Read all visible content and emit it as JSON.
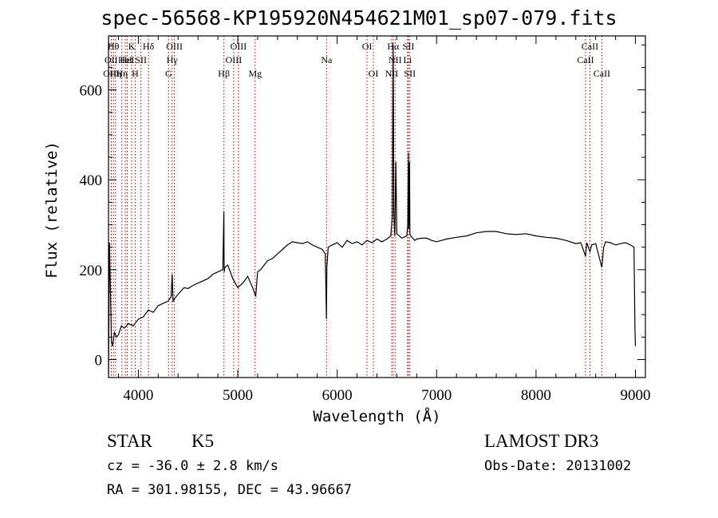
{
  "chart_data": {
    "type": "line",
    "title": "spec-56568-KP195920N454621M01_sp07-079.fits",
    "xlabel": "Wavelength (Å)",
    "ylabel": "Flux (relative)",
    "xlim": [
      3700,
      9100
    ],
    "ylim": [
      -40,
      720
    ],
    "xticks": [
      4000,
      5000,
      6000,
      7000,
      8000,
      9000
    ],
    "yticks": [
      0,
      200,
      400,
      600
    ],
    "series": [
      {
        "name": "flux",
        "x": [
          3700,
          3710,
          3720,
          3730,
          3740,
          3760,
          3780,
          3800,
          3830,
          3860,
          3900,
          3950,
          4000,
          4050,
          4100,
          4150,
          4200,
          4250,
          4300,
          4330,
          4340,
          4350,
          4380,
          4420,
          4460,
          4500,
          4550,
          4600,
          4650,
          4700,
          4750,
          4800,
          4850,
          4860,
          4862,
          4864,
          4870,
          4900,
          4950,
          5000,
          5050,
          5100,
          5150,
          5180,
          5200,
          5230,
          5300,
          5350,
          5400,
          5450,
          5500,
          5550,
          5600,
          5650,
          5700,
          5750,
          5800,
          5850,
          5880,
          5892,
          5896,
          5910,
          5950,
          6000,
          6050,
          6100,
          6150,
          6200,
          6250,
          6300,
          6350,
          6400,
          6450,
          6500,
          6540,
          6555,
          6560,
          6563,
          6566,
          6570,
          6580,
          6590,
          6600,
          6650,
          6700,
          6710,
          6717,
          6720,
          6727,
          6731,
          6740,
          6780,
          6800,
          6850,
          6900,
          6950,
          7000,
          7100,
          7200,
          7300,
          7400,
          7500,
          7600,
          7700,
          7800,
          7900,
          8000,
          8100,
          8200,
          8300,
          8400,
          8450,
          8498,
          8510,
          8542,
          8560,
          8600,
          8662,
          8680,
          8700,
          8750,
          8800,
          8850,
          8900,
          8950,
          8985,
          8995,
          9000
        ],
        "values": [
          -30,
          260,
          150,
          40,
          30,
          60,
          50,
          55,
          75,
          70,
          80,
          75,
          90,
          95,
          110,
          105,
          120,
          125,
          130,
          140,
          190,
          130,
          140,
          150,
          160,
          158,
          165,
          170,
          175,
          180,
          190,
          195,
          200,
          330,
          240,
          195,
          205,
          210,
          180,
          160,
          170,
          185,
          160,
          140,
          195,
          200,
          220,
          225,
          235,
          245,
          255,
          262,
          260,
          258,
          262,
          255,
          250,
          245,
          235,
          90,
          205,
          250,
          255,
          260,
          250,
          265,
          258,
          262,
          255,
          265,
          260,
          268,
          262,
          268,
          275,
          320,
          560,
          700,
          560,
          320,
          275,
          440,
          280,
          270,
          275,
          300,
          460,
          290,
          440,
          280,
          275,
          265,
          268,
          270,
          270,
          265,
          262,
          268,
          272,
          275,
          282,
          285,
          285,
          280,
          278,
          280,
          275,
          272,
          270,
          265,
          258,
          260,
          230,
          260,
          240,
          255,
          258,
          205,
          250,
          262,
          260,
          255,
          258,
          260,
          255,
          250,
          70,
          30
        ]
      }
    ],
    "lines": [
      {
        "wave": 3727,
        "label": "OII",
        "row": 2
      },
      {
        "wave": 3729,
        "label": "OIII",
        "row": 3
      },
      {
        "wave": 3750,
        "label": "Hθ",
        "row": 1
      },
      {
        "wave": 3771,
        "label": "Hη",
        "row": 3
      },
      {
        "wave": 3835,
        "label": "Hη",
        "row": 3
      },
      {
        "wave": 3869,
        "label": "HeI",
        "row": 2
      },
      {
        "wave": 3889,
        "label": "HeI",
        "row": 2
      },
      {
        "wave": 3933,
        "label": "K",
        "row": 1
      },
      {
        "wave": 3968,
        "label": "H",
        "row": 3
      },
      {
        "wave": 4026,
        "label": "SII",
        "row": 2
      },
      {
        "wave": 4102,
        "label": "Hδ",
        "row": 1
      },
      {
        "wave": 4304,
        "label": "G",
        "row": 3
      },
      {
        "wave": 4340,
        "label": "Hγ",
        "row": 2
      },
      {
        "wave": 4363,
        "label": "OIII",
        "row": 1
      },
      {
        "wave": 4861,
        "label": "Hβ",
        "row": 3
      },
      {
        "wave": 4959,
        "label": "OIII",
        "row": 2
      },
      {
        "wave": 5007,
        "label": "OIII",
        "row": 1
      },
      {
        "wave": 5175,
        "label": "Mg",
        "row": 3
      },
      {
        "wave": 5893,
        "label": "Na",
        "row": 2
      },
      {
        "wave": 6300,
        "label": "OI",
        "row": 1
      },
      {
        "wave": 6364,
        "label": "OI",
        "row": 3
      },
      {
        "wave": 6548,
        "label": "NII",
        "row": 3
      },
      {
        "wave": 6563,
        "label": "Hα",
        "row": 1
      },
      {
        "wave": 6583,
        "label": "NII",
        "row": 2
      },
      {
        "wave": 6708,
        "label": "Li",
        "row": 2
      },
      {
        "wave": 6717,
        "label": "SII",
        "row": 1
      },
      {
        "wave": 6731,
        "label": "SII",
        "row": 3
      },
      {
        "wave": 8498,
        "label": "CaII",
        "row": 2
      },
      {
        "wave": 8542,
        "label": "CaII",
        "row": 1
      },
      {
        "wave": 8662,
        "label": "CaII",
        "row": 3
      }
    ]
  },
  "info": {
    "class": "STAR",
    "subclass": "K5",
    "survey": "LAMOST DR3",
    "cz": "cz = -36.0 ± 2.8 km/s",
    "obs_date": "Obs-Date: 20131002",
    "radec": "RA = 301.98155, DEC =  43.96667"
  }
}
